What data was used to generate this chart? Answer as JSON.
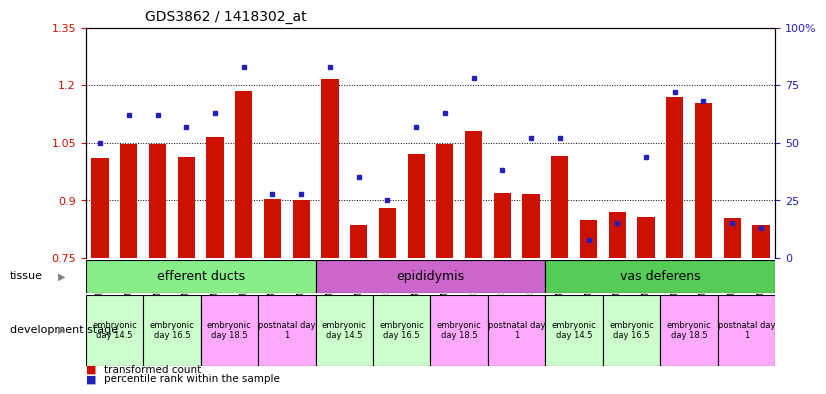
{
  "title": "GDS3862 / 1418302_at",
  "samples": [
    "GSM560923",
    "GSM560924",
    "GSM560925",
    "GSM560926",
    "GSM560927",
    "GSM560928",
    "GSM560929",
    "GSM560930",
    "GSM560931",
    "GSM560932",
    "GSM560933",
    "GSM560934",
    "GSM560935",
    "GSM560936",
    "GSM560937",
    "GSM560938",
    "GSM560939",
    "GSM560940",
    "GSM560941",
    "GSM560942",
    "GSM560943",
    "GSM560944",
    "GSM560945",
    "GSM560946"
  ],
  "transformed_count": [
    1.01,
    1.048,
    1.048,
    1.013,
    1.065,
    1.185,
    0.905,
    0.902,
    1.215,
    0.835,
    0.88,
    1.02,
    1.048,
    1.08,
    0.92,
    0.918,
    1.015,
    0.85,
    0.87,
    0.858,
    1.17,
    1.155,
    0.855,
    0.835
  ],
  "percentile_rank": [
    50,
    62,
    62,
    57,
    63,
    83,
    28,
    28,
    83,
    35,
    25,
    57,
    63,
    78,
    38,
    52,
    52,
    8,
    15,
    44,
    72,
    68,
    15,
    13
  ],
  "ylim_left": [
    0.75,
    1.35
  ],
  "ylim_right": [
    0,
    100
  ],
  "yticks_left": [
    0.75,
    0.9,
    1.05,
    1.2,
    1.35
  ],
  "yticks_right": [
    0,
    25,
    50,
    75,
    100
  ],
  "bar_color": "#CC1100",
  "dot_color": "#2222BB",
  "background_color": "#FFFFFF",
  "bar_baseline": 0.75,
  "tissue_groups": [
    {
      "label": "efferent ducts",
      "start": 0,
      "end": 7,
      "color": "#88EE88"
    },
    {
      "label": "epididymis",
      "start": 8,
      "end": 15,
      "color": "#CC66CC"
    },
    {
      "label": "vas deferens",
      "start": 16,
      "end": 23,
      "color": "#55CC55"
    }
  ],
  "dev_stage_groups": [
    {
      "label": "embryonic\nday 14.5",
      "start": 0,
      "end": 1,
      "color": "#CCFFCC"
    },
    {
      "label": "embryonic\nday 16.5",
      "start": 2,
      "end": 3,
      "color": "#CCFFCC"
    },
    {
      "label": "embryonic\nday 18.5",
      "start": 4,
      "end": 5,
      "color": "#FFAAFF"
    },
    {
      "label": "postnatal day\n1",
      "start": 6,
      "end": 7,
      "color": "#FFAAFF"
    },
    {
      "label": "embryonic\nday 14.5",
      "start": 8,
      "end": 9,
      "color": "#CCFFCC"
    },
    {
      "label": "embryonic\nday 16.5",
      "start": 10,
      "end": 11,
      "color": "#CCFFCC"
    },
    {
      "label": "embryonic\nday 18.5",
      "start": 12,
      "end": 13,
      "color": "#FFAAFF"
    },
    {
      "label": "postnatal day\n1",
      "start": 14,
      "end": 15,
      "color": "#FFAAFF"
    },
    {
      "label": "embryonic\nday 14.5",
      "start": 16,
      "end": 17,
      "color": "#CCFFCC"
    },
    {
      "label": "embryonic\nday 16.5",
      "start": 18,
      "end": 19,
      "color": "#CCFFCC"
    },
    {
      "label": "embryonic\nday 18.5",
      "start": 20,
      "end": 21,
      "color": "#FFAAFF"
    },
    {
      "label": "postnatal day\n1",
      "start": 22,
      "end": 23,
      "color": "#FFAAFF"
    }
  ],
  "legend_items": [
    {
      "label": "transformed count",
      "color": "#CC1100"
    },
    {
      "label": "percentile rank within the sample",
      "color": "#2222BB"
    }
  ],
  "dotted_lines": [
    0.9,
    1.05,
    1.2
  ],
  "tissue_label": "tissue",
  "dev_stage_label": "development stage"
}
